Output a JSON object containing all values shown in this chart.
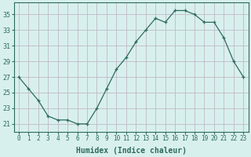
{
  "x": [
    0,
    1,
    2,
    3,
    4,
    5,
    6,
    7,
    8,
    9,
    10,
    11,
    12,
    13,
    14,
    15,
    16,
    17,
    18,
    19,
    20,
    21,
    22,
    23
  ],
  "y": [
    27,
    25.5,
    24,
    22,
    21.5,
    21.5,
    21,
    21,
    23,
    25.5,
    28,
    29.5,
    31.5,
    33,
    34.5,
    34,
    35.5,
    35.5,
    35,
    34,
    34,
    32,
    29,
    27
  ],
  "xlabel": "Humidex (Indice chaleur)",
  "ylabel": "",
  "xlim": [
    -0.5,
    23.5
  ],
  "ylim": [
    20.0,
    36.5
  ],
  "yticks": [
    21,
    23,
    25,
    27,
    29,
    31,
    33,
    35
  ],
  "xticks": [
    0,
    1,
    2,
    3,
    4,
    5,
    6,
    7,
    8,
    9,
    10,
    11,
    12,
    13,
    14,
    15,
    16,
    17,
    18,
    19,
    20,
    21,
    22,
    23
  ],
  "line_color": "#2d6b5e",
  "marker": "P",
  "marker_size": 2.5,
  "bg_color": "#d8f0ed",
  "grid_color": "#c0b8c8",
  "spine_color": "#2d6b5e",
  "tick_color": "#2d6b5e",
  "xlabel_color": "#2d6b5e",
  "tick_fontsize": 5.5,
  "xlabel_fontsize": 7.0
}
